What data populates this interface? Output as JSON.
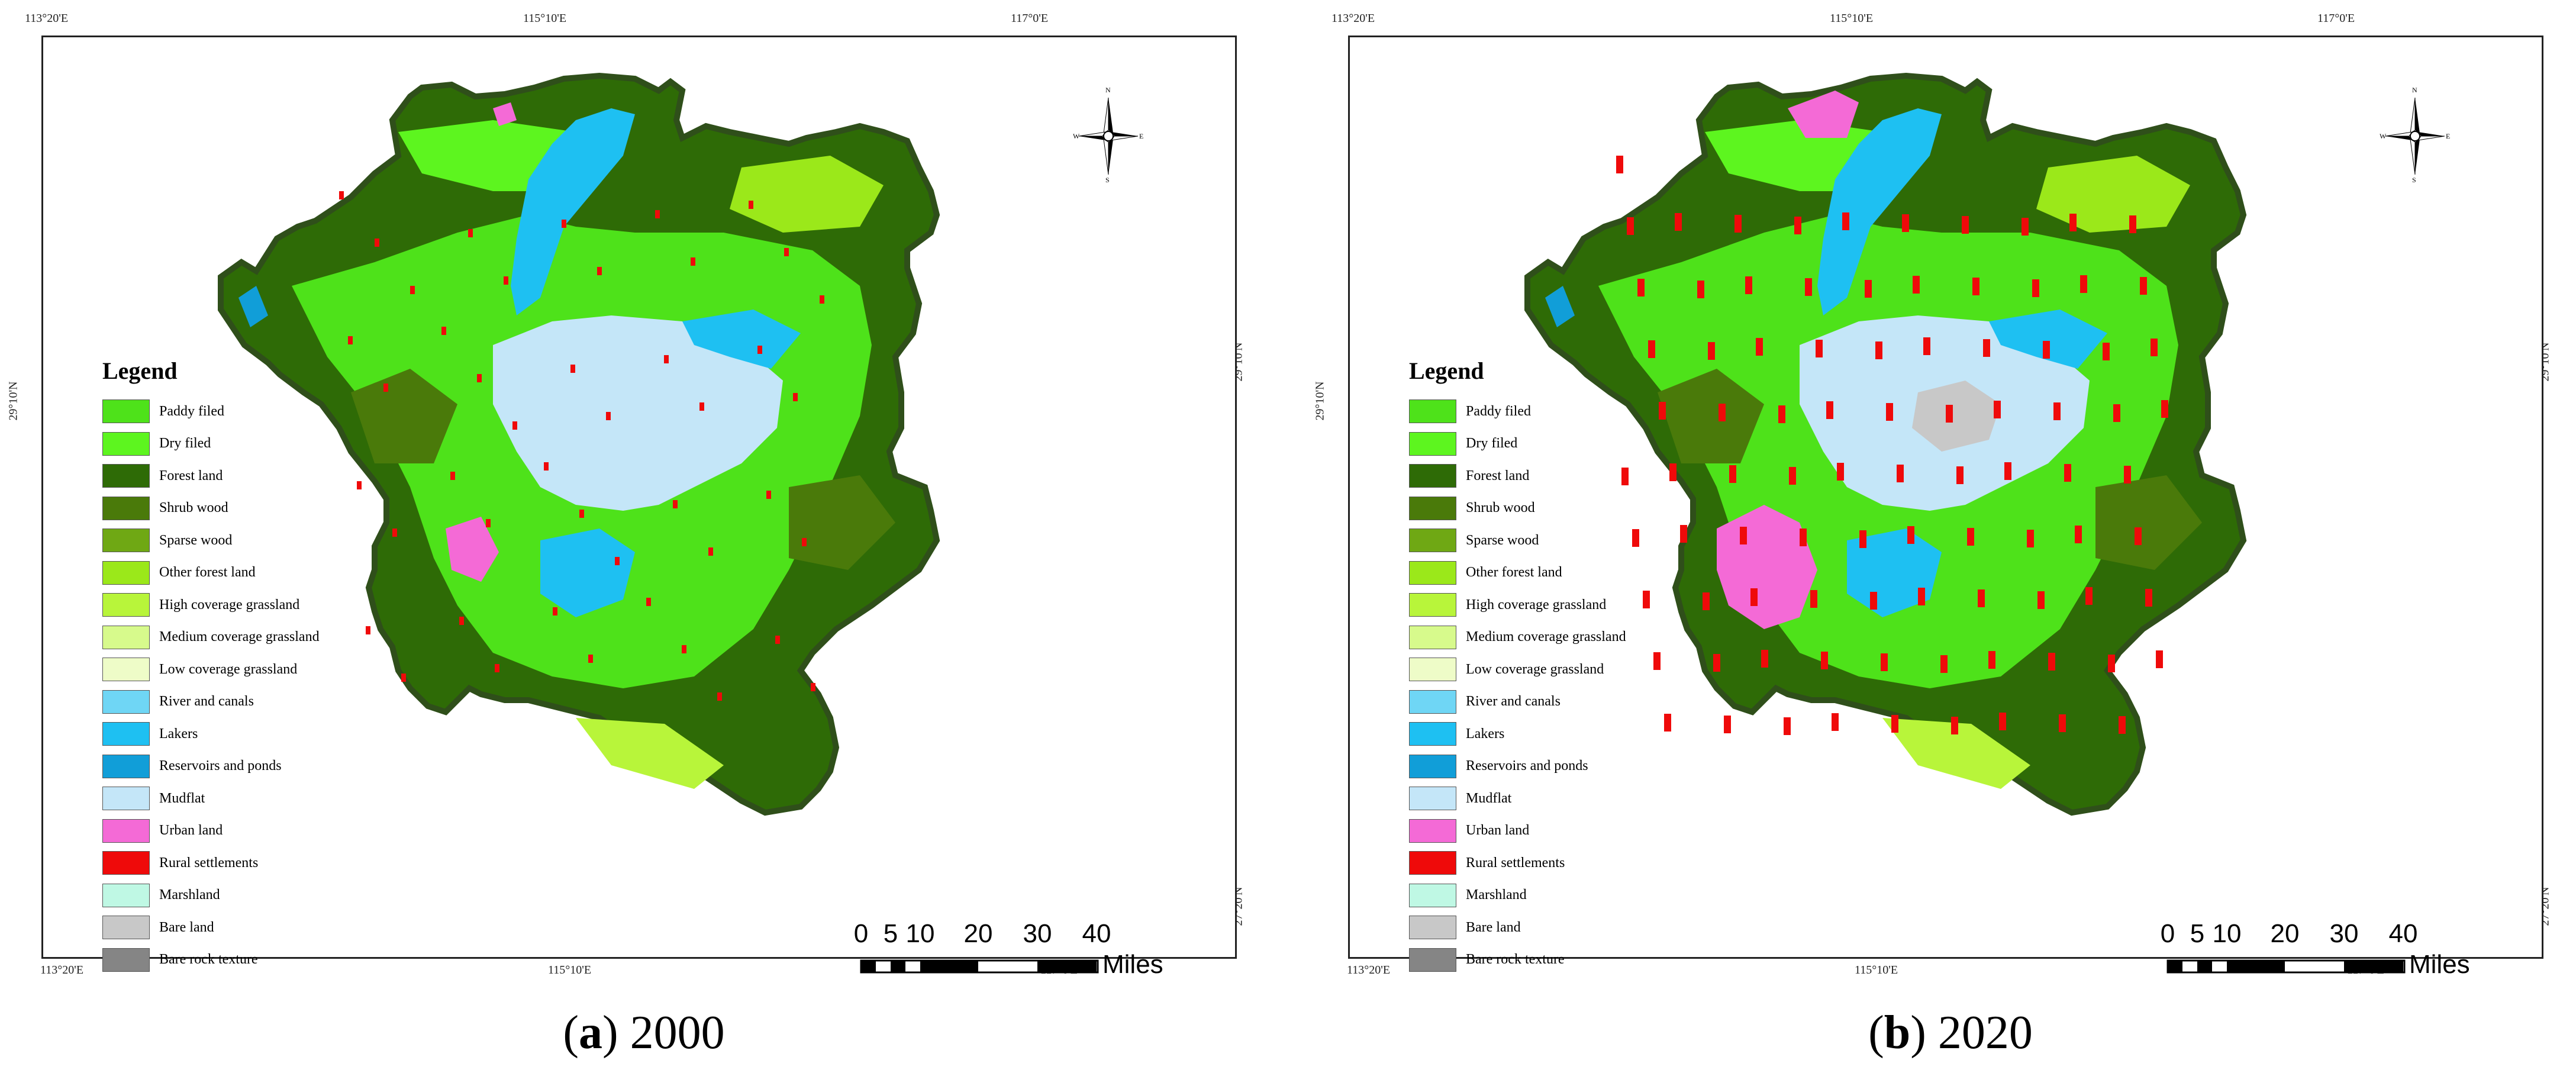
{
  "legend": {
    "title": "Legend",
    "items": [
      {
        "label": "Paddy filed",
        "color": "#4ee21a"
      },
      {
        "label": "Dry filed",
        "color": "#5df51f"
      },
      {
        "label": "Forest land",
        "color": "#2e6b06"
      },
      {
        "label": "Shrub wood",
        "color": "#4a7a0a"
      },
      {
        "label": "Sparse wood",
        "color": "#6fa814"
      },
      {
        "label": "Other forest land",
        "color": "#9be81a"
      },
      {
        "label": "High coverage grassland",
        "color": "#b8f53a"
      },
      {
        "label": "Medium coverage grassland",
        "color": "#d7fa8c"
      },
      {
        "label": "Low coverage grassland",
        "color": "#eefcc8"
      },
      {
        "label": "River and canals",
        "color": "#6fd6f5"
      },
      {
        "label": "Lakers",
        "color": "#1ec0f2"
      },
      {
        "label": "Reservoirs and ponds",
        "color": "#119ed8"
      },
      {
        "label": "Mudflat",
        "color": "#c4e6f8"
      },
      {
        "label": "Urban land",
        "color": "#f46ad6"
      },
      {
        "label": "Rural settlements",
        "color": "#ef0a0a"
      },
      {
        "label": "Marshland",
        "color": "#bff8e4"
      },
      {
        "label": "Bare land",
        "color": "#c8c8c8"
      },
      {
        "label": "Bare rock texture",
        "color": "#858585"
      }
    ]
  },
  "coords": {
    "lon1": "113°20'E",
    "lon2": "115°10'E",
    "lon3": "117°0'E",
    "lat_upper": "29°10'N",
    "lat_lower": "27°20'N"
  },
  "compass": {
    "n": "N",
    "s": "S",
    "w": "W",
    "e": "E"
  },
  "scale": {
    "ticks": [
      "0",
      "5",
      "10",
      "20",
      "30",
      "40"
    ],
    "unit": "Miles"
  },
  "panels": [
    {
      "letter": "a",
      "year": "2000"
    },
    {
      "letter": "b",
      "year": "2020"
    }
  ],
  "map_style": {
    "background": "#ffffff",
    "frame_color": "#222222",
    "region_base": "#3f8a12"
  }
}
